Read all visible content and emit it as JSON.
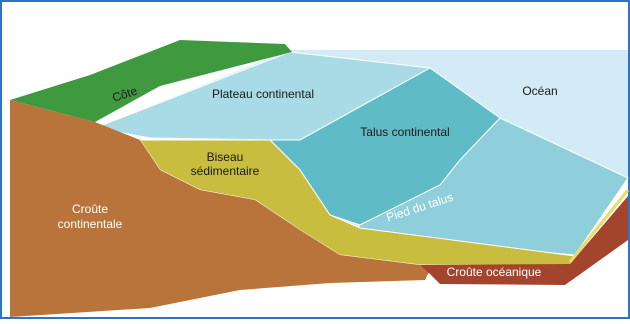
{
  "labels": [
    {
      "text": "Côte"
    },
    {
      "text": "Plateau continental"
    },
    {
      "text": "Océan"
    },
    {
      "text": "Talus continental"
    },
    {
      "lines": [
        "Biseau",
        "sédimentaire"
      ]
    },
    {
      "lines": [
        "Croûte",
        "continentale"
      ]
    },
    {
      "text": "Pied du talus"
    },
    {
      "text": "Croûte océanique"
    }
  ]
}
